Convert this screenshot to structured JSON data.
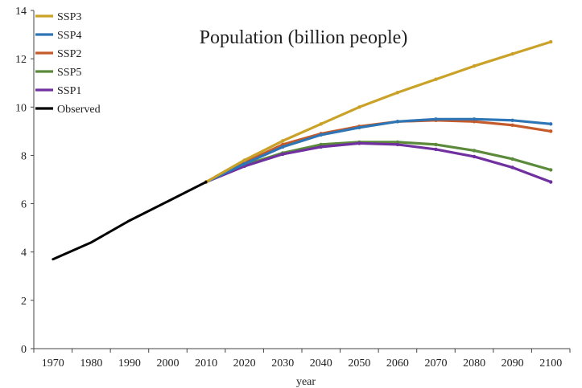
{
  "chart_data": {
    "type": "line",
    "title": "Population (billion people)",
    "xlabel": "year",
    "ylabel": "",
    "xlim": [
      1965,
      2105
    ],
    "ylim": [
      0,
      14
    ],
    "x_ticks": [
      1970,
      1980,
      1990,
      2000,
      2010,
      2020,
      2030,
      2040,
      2050,
      2060,
      2070,
      2080,
      2090,
      2100
    ],
    "y_ticks": [
      0,
      2,
      4,
      6,
      8,
      10,
      12,
      14
    ],
    "grid": false,
    "legend_position": "top-left",
    "series": [
      {
        "name": "SSP3",
        "color": "#c9a227",
        "x": [
          2010,
          2020,
          2030,
          2040,
          2050,
          2060,
          2070,
          2080,
          2090,
          2100
        ],
        "values": [
          6.9,
          7.8,
          8.6,
          9.3,
          10.0,
          10.6,
          11.15,
          11.7,
          12.2,
          12.7
        ]
      },
      {
        "name": "SSP4",
        "color": "#2e75b6",
        "x": [
          2010,
          2020,
          2030,
          2040,
          2050,
          2060,
          2070,
          2080,
          2090,
          2100
        ],
        "values": [
          6.9,
          7.65,
          8.35,
          8.85,
          9.15,
          9.4,
          9.5,
          9.5,
          9.45,
          9.3
        ]
      },
      {
        "name": "SSP2",
        "color": "#c55a2a",
        "x": [
          2010,
          2020,
          2030,
          2040,
          2050,
          2060,
          2070,
          2080,
          2090,
          2100
        ],
        "values": [
          6.9,
          7.7,
          8.45,
          8.9,
          9.2,
          9.4,
          9.45,
          9.4,
          9.25,
          9.0
        ]
      },
      {
        "name": "SSP5",
        "color": "#5b8a3a",
        "x": [
          2010,
          2020,
          2030,
          2040,
          2050,
          2060,
          2070,
          2080,
          2090,
          2100
        ],
        "values": [
          6.9,
          7.6,
          8.1,
          8.45,
          8.55,
          8.55,
          8.45,
          8.2,
          7.85,
          7.4
        ]
      },
      {
        "name": "SSP1",
        "color": "#7030a0",
        "x": [
          2010,
          2020,
          2030,
          2040,
          2050,
          2060,
          2070,
          2080,
          2090,
          2100
        ],
        "values": [
          6.9,
          7.55,
          8.05,
          8.35,
          8.5,
          8.45,
          8.25,
          7.95,
          7.5,
          6.9
        ]
      },
      {
        "name": "Observed",
        "color": "#000000",
        "x": [
          1970,
          1980,
          1990,
          2000,
          2010
        ],
        "values": [
          3.7,
          4.4,
          5.3,
          6.1,
          6.9
        ]
      }
    ]
  }
}
